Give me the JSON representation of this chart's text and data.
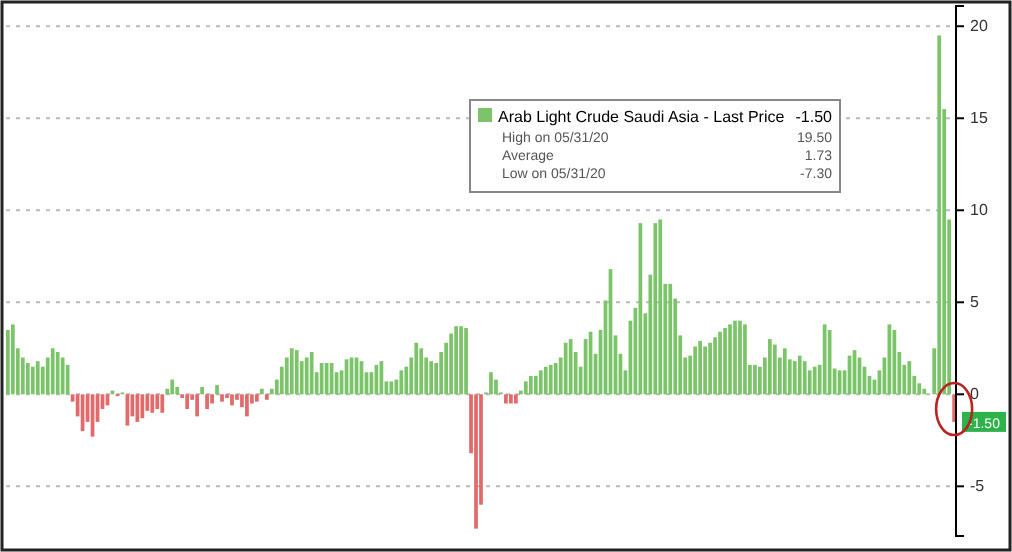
{
  "chart_data": {
    "type": "bar",
    "categories": [
      null,
      null,
      null,
      null,
      null,
      null,
      null,
      null,
      null,
      null,
      null,
      null,
      null,
      null,
      null,
      null,
      null,
      null,
      null,
      null,
      null,
      null,
      null,
      null,
      null,
      null,
      null,
      null,
      null,
      null,
      null,
      null,
      null,
      null,
      null,
      null,
      null,
      null,
      null,
      null,
      null,
      null,
      null,
      null,
      null,
      null,
      null,
      null,
      null,
      null,
      null,
      null,
      null,
      null,
      null,
      null,
      null,
      null,
      null,
      null,
      null,
      null,
      null,
      null,
      null,
      null,
      null,
      null,
      null,
      null,
      null,
      null,
      null,
      null,
      null,
      null,
      null,
      null,
      null,
      null,
      null,
      null,
      null,
      null,
      null,
      null,
      null,
      null,
      null,
      null,
      null,
      null,
      null,
      null,
      null,
      null,
      null,
      null,
      null,
      null,
      null,
      null,
      null,
      null,
      null,
      null,
      null,
      null,
      null,
      null,
      null,
      null,
      null,
      null,
      null,
      null,
      null,
      null,
      null,
      null,
      null,
      null,
      null,
      null,
      null,
      null,
      null,
      null,
      null,
      null,
      null,
      null,
      null,
      null,
      null,
      null,
      null,
      null,
      null,
      null,
      null,
      null,
      null,
      null,
      null,
      null,
      null,
      null,
      null,
      null,
      null,
      null,
      null,
      null,
      null,
      null,
      null,
      null,
      null,
      null,
      null,
      null,
      null,
      null,
      null,
      null,
      null,
      null,
      null,
      null,
      null,
      null,
      null,
      null,
      null,
      null,
      null,
      null,
      null,
      null,
      null,
      null,
      null,
      null,
      null,
      null,
      null,
      null,
      null,
      null,
      null
    ],
    "series": [
      {
        "name": "Arab Light Crude Saudi Asia - Last Price",
        "color": "#7cc46a",
        "values": [
          3.5,
          3.8,
          2.5,
          2,
          1.7,
          1.5,
          1.8,
          1.5,
          2,
          2.5,
          2.3,
          2,
          1.6,
          -0.4,
          -1.2,
          -2,
          -1.5,
          -2.3,
          -1.5,
          -0.8,
          -0.6,
          0.2,
          -0.1,
          0.1,
          -1.7,
          -1.2,
          -1.5,
          -1.3,
          -0.9,
          -1,
          -0.8,
          -1,
          0.3,
          0.8,
          0.4,
          -0.2,
          -0.8,
          -0.3,
          -1.2,
          0.4,
          -0.8,
          -0.5,
          0.5,
          -0.4,
          -0.2,
          -0.6,
          -0.3,
          -0.7,
          -1.2,
          -0.5,
          -0.4,
          0.3,
          -0.3,
          0.3,
          0.8,
          1.5,
          2,
          2.5,
          2.4,
          1.8,
          2,
          2.3,
          1.2,
          1.7,
          1.7,
          1.7,
          1.2,
          1.3,
          1.9,
          2,
          2,
          1.8,
          1.2,
          1.2,
          1.6,
          1.8,
          0.7,
          0.7,
          0.8,
          1.3,
          1.5,
          2,
          2.8,
          2.5,
          2,
          1.8,
          1.7,
          2.3,
          2.8,
          3.3,
          3.7,
          3.7,
          3.6,
          -3.2,
          -7.3,
          -6,
          0.1,
          1.2,
          0.8,
          0.1,
          -0.5,
          -0.5,
          -0.5,
          0.2,
          0.7,
          1,
          1,
          1.3,
          1.5,
          1.6,
          1.7,
          2,
          2.8,
          3,
          2.3,
          1.5,
          3,
          3.4,
          2.2,
          3.5,
          5.1,
          6.8,
          3.2,
          2.2,
          1.3,
          4,
          4.7,
          9.3,
          4.4,
          6.5,
          9.3,
          9.5,
          6,
          6,
          5.2,
          3.2,
          2,
          2.1,
          2.6,
          2.9,
          2.6,
          2.8,
          3.1,
          3.4,
          3.6,
          3.8,
          4,
          4,
          3.8,
          1.6,
          1.6,
          1.5,
          2,
          3,
          2.7,
          2,
          2.5,
          1.9,
          1.8,
          2.1,
          1.8,
          1.3,
          1.5,
          1.6,
          3.8,
          3.5,
          1.4,
          1.3,
          1.3,
          2.1,
          2.4,
          2,
          1.5,
          1,
          0.8,
          1.3,
          2,
          3.8,
          3.5,
          2.3,
          1.6,
          1.8,
          1,
          0.6,
          0.3,
          0,
          2.5,
          19.5,
          15.5,
          9.5,
          -1.5
        ],
        "colors": [
          "#7cc46a",
          "#7cc46a",
          "#7cc46a",
          "#7cc46a",
          "#7cc46a",
          "#7cc46a",
          "#7cc46a",
          "#7cc46a",
          "#7cc46a",
          "#7cc46a",
          "#7cc46a",
          "#7cc46a",
          "#7cc46a",
          "#e26a6a",
          "#e26a6a",
          "#e26a6a",
          "#e26a6a",
          "#e26a6a",
          "#e26a6a",
          "#e26a6a",
          "#e26a6a",
          "#7cc46a",
          "#e26a6a",
          "#7cc46a",
          "#e26a6a",
          "#e26a6a",
          "#e26a6a",
          "#e26a6a",
          "#e26a6a",
          "#e26a6a",
          "#e26a6a",
          "#e26a6a",
          "#7cc46a",
          "#7cc46a",
          "#7cc46a",
          "#e26a6a",
          "#e26a6a",
          "#e26a6a",
          "#e26a6a",
          "#7cc46a",
          "#e26a6a",
          "#e26a6a",
          "#7cc46a",
          "#e26a6a",
          "#e26a6a",
          "#e26a6a",
          "#e26a6a",
          "#e26a6a",
          "#e26a6a",
          "#e26a6a",
          "#e26a6a",
          "#7cc46a",
          "#e26a6a",
          "#7cc46a",
          "#7cc46a",
          "#7cc46a",
          "#7cc46a",
          "#7cc46a",
          "#7cc46a",
          "#7cc46a",
          "#7cc46a",
          "#7cc46a",
          "#7cc46a",
          "#7cc46a",
          "#7cc46a",
          "#7cc46a",
          "#7cc46a",
          "#7cc46a",
          "#7cc46a",
          "#7cc46a",
          "#7cc46a",
          "#7cc46a",
          "#7cc46a",
          "#7cc46a",
          "#7cc46a",
          "#7cc46a",
          "#7cc46a",
          "#7cc46a",
          "#7cc46a",
          "#7cc46a",
          "#7cc46a",
          "#7cc46a",
          "#7cc46a",
          "#7cc46a",
          "#7cc46a",
          "#7cc46a",
          "#7cc46a",
          "#7cc46a",
          "#7cc46a",
          "#7cc46a",
          "#7cc46a",
          "#7cc46a",
          "#7cc46a",
          "#e26a6a",
          "#e26a6a",
          "#e26a6a",
          "#7cc46a",
          "#7cc46a",
          "#7cc46a",
          "#7cc46a",
          "#e26a6a",
          "#e26a6a",
          "#e26a6a",
          "#7cc46a",
          "#7cc46a",
          "#7cc46a",
          "#7cc46a",
          "#7cc46a",
          "#7cc46a",
          "#7cc46a",
          "#7cc46a",
          "#7cc46a",
          "#7cc46a",
          "#7cc46a",
          "#7cc46a",
          "#7cc46a",
          "#7cc46a",
          "#7cc46a",
          "#7cc46a",
          "#7cc46a",
          "#7cc46a",
          "#7cc46a",
          "#7cc46a",
          "#7cc46a",
          "#7cc46a",
          "#7cc46a",
          "#7cc46a",
          "#7cc46a",
          "#7cc46a",
          "#7cc46a",
          "#7cc46a",
          "#7cc46a",
          "#7cc46a",
          "#7cc46a",
          "#7cc46a",
          "#7cc46a",
          "#7cc46a",
          "#7cc46a",
          "#7cc46a",
          "#7cc46a",
          "#7cc46a",
          "#7cc46a",
          "#7cc46a",
          "#7cc46a",
          "#7cc46a",
          "#7cc46a",
          "#7cc46a",
          "#7cc46a",
          "#7cc46a",
          "#7cc46a",
          "#7cc46a",
          "#7cc46a",
          "#7cc46a",
          "#7cc46a",
          "#7cc46a",
          "#7cc46a",
          "#7cc46a",
          "#7cc46a",
          "#7cc46a",
          "#7cc46a",
          "#7cc46a",
          "#7cc46a",
          "#7cc46a",
          "#7cc46a",
          "#7cc46a",
          "#7cc46a",
          "#7cc46a",
          "#7cc46a",
          "#7cc46a",
          "#7cc46a",
          "#7cc46a",
          "#7cc46a",
          "#7cc46a",
          "#7cc46a",
          "#7cc46a",
          "#7cc46a",
          "#7cc46a",
          "#7cc46a",
          "#7cc46a",
          "#7cc46a",
          "#7cc46a",
          "#7cc46a",
          "#7cc46a",
          "#7cc46a",
          "#7cc46a",
          "#7cc46a",
          "#7cc46a",
          "#7cc46a",
          "#7cc46a",
          "#7cc46a",
          "#e26a6a"
        ]
      }
    ],
    "ylim": [
      -7.7,
      21.1
    ],
    "yticks": [
      -5,
      0,
      5,
      10,
      15,
      20
    ],
    "grid": "y",
    "legend": "top",
    "annotations": [
      "-1.50",
      "High on 05/31/20",
      "19.50",
      "Average",
      "1.73",
      "Low on 05/31/20",
      "-7.30",
      {
        "text": "-1.50",
        "y": -1.5
      }
    ]
  }
}
